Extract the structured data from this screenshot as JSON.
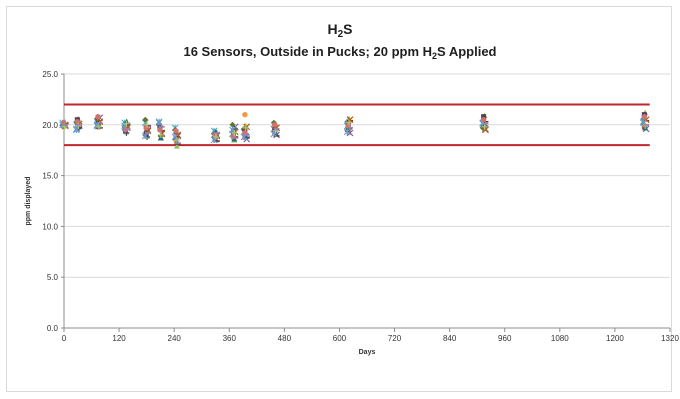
{
  "chart_data": {
    "type": "scatter",
    "title_line1_main": "H",
    "title_line1_sub": "2",
    "title_line1_tail": "S",
    "title_line2_pre": "16 Sensors, Outside in Pucks; 20 ppm H",
    "title_line2_sub": "2",
    "title_line2_post": "S Applied",
    "xlabel": "Days",
    "ylabel": "ppm displayed",
    "xlim": [
      0,
      1320
    ],
    "ylim": [
      0,
      25
    ],
    "x_ticks": [
      "0",
      "120",
      "240",
      "360",
      "480",
      "600",
      "720",
      "840",
      "960",
      "1080",
      "1200",
      "1320"
    ],
    "y_ticks": [
      "0.0",
      "5.0",
      "10.0",
      "15.0",
      "20.0",
      "25.0"
    ],
    "grid": true,
    "limit_lines": [
      22,
      18
    ],
    "limit_color": "#c0262d",
    "series_colors": [
      "#4f81bd",
      "#c0504d",
      "#9bbb59",
      "#8064a2",
      "#4bacc6",
      "#f79646",
      "#2c4d75",
      "#772c2a",
      "#5f7530",
      "#4d3b62",
      "#276a7c",
      "#b65708",
      "#729aca",
      "#cd7371",
      "#afc97a",
      "#9983b5"
    ],
    "x_groups": [
      0,
      30,
      75,
      135,
      180,
      210,
      245,
      330,
      370,
      395,
      460,
      620,
      915,
      1265
    ],
    "group_values": [
      [
        20.0,
        20.1,
        19.9,
        20.0,
        20.2,
        19.8,
        20.0,
        20.1,
        19.9,
        20.0,
        20.1,
        19.9,
        20.0,
        20.2,
        19.8,
        20.0
      ],
      [
        20.3,
        19.6,
        20.6,
        19.9,
        19.5,
        20.4,
        20.0,
        19.7,
        20.2,
        20.5,
        19.8,
        20.1,
        19.6,
        20.3,
        19.9,
        20.0
      ],
      [
        20.5,
        19.8,
        20.2,
        20.7,
        19.9,
        20.0,
        20.4,
        19.7,
        20.6,
        20.1,
        19.9,
        20.3,
        20.0,
        20.8,
        19.8,
        20.2
      ],
      [
        19.5,
        20.1,
        19.3,
        19.9,
        20.2,
        19.6,
        19.2,
        20.0,
        19.8,
        19.4,
        20.3,
        19.7,
        19.9,
        19.5,
        20.1,
        19.6
      ],
      [
        19.0,
        19.8,
        18.9,
        19.5,
        20.2,
        19.3,
        18.8,
        19.9,
        20.5,
        19.1,
        19.6,
        19.4,
        18.9,
        19.7,
        20.0,
        19.2
      ],
      [
        20.1,
        19.6,
        18.8,
        19.2,
        20.3,
        19.9,
        18.9,
        19.4,
        20.0,
        19.7,
        18.7,
        19.1,
        20.2,
        19.5,
        19.0,
        19.8
      ],
      [
        18.6,
        19.3,
        17.9,
        18.9,
        19.7,
        18.4,
        19.1,
        18.1,
        19.5,
        18.7,
        18.3,
        19.0,
        18.8,
        19.4,
        18.5,
        18.2
      ],
      [
        18.8,
        19.2,
        18.5,
        19.0,
        19.4,
        18.7,
        18.9,
        18.4,
        19.1,
        18.6,
        19.3,
        18.9,
        18.5,
        19.0,
        18.8,
        19.2
      ],
      [
        18.9,
        19.4,
        18.5,
        19.8,
        19.1,
        18.7,
        19.6,
        18.8,
        20.0,
        19.0,
        18.6,
        19.3,
        19.5,
        18.9,
        19.2,
        18.7
      ],
      [
        19.5,
        18.8,
        19.9,
        18.6,
        19.3,
        21.0,
        19.1,
        18.7,
        19.6,
        19.4,
        18.9,
        19.8,
        18.8,
        19.2,
        19.7,
        19.0
      ],
      [
        19.8,
        19.3,
        20.1,
        19.0,
        19.6,
        19.9,
        19.4,
        18.9,
        20.2,
        19.5,
        19.2,
        19.7,
        19.1,
        20.0,
        19.4,
        19.6
      ],
      [
        20.3,
        19.5,
        20.6,
        19.2,
        19.9,
        20.1,
        19.6,
        20.4,
        19.4,
        20.0,
        19.8,
        20.5,
        19.3,
        19.9,
        20.2,
        19.7
      ],
      [
        20.4,
        19.8,
        20.9,
        19.6,
        20.1,
        20.6,
        19.9,
        20.3,
        19.7,
        20.8,
        20.0,
        19.5,
        20.2,
        20.5,
        19.8,
        20.1
      ],
      [
        20.6,
        19.8,
        21.2,
        19.6,
        20.3,
        20.9,
        19.9,
        20.4,
        20.1,
        21.0,
        19.7,
        20.5,
        20.2,
        20.8,
        19.9,
        20.0
      ]
    ]
  }
}
